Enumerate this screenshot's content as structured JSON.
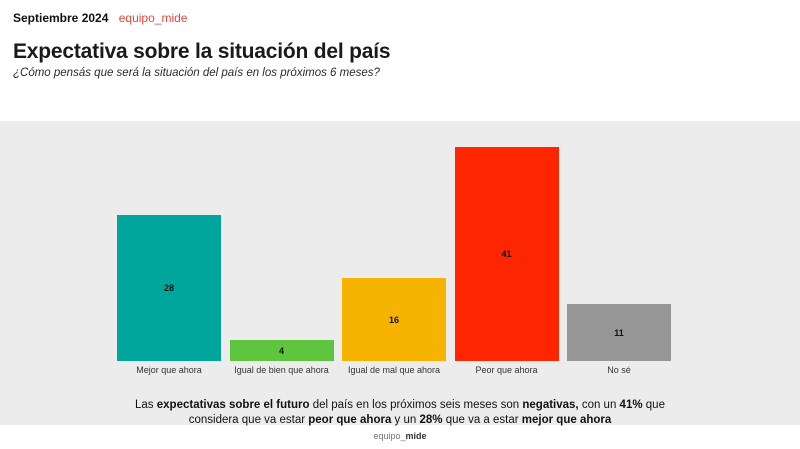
{
  "header": {
    "date": "Septiembre 2024",
    "brand": "equipo_mide",
    "brand_color": "#e8463a"
  },
  "title": "Expectativa sobre la situación del país",
  "subtitle": "¿Cómo pensás que será la situación del país en los próximos 6 meses?",
  "chart_data": {
    "type": "bar",
    "categories": [
      "Mejor que ahora",
      "Igual de bien que ahora",
      "Igual de mal que ahora",
      "Peor que ahora",
      "No sé"
    ],
    "values": [
      28,
      4,
      16,
      41,
      11
    ],
    "bar_colors": [
      "#00a69b",
      "#5dc53e",
      "#f6b401",
      "#fd2600",
      "#969696"
    ],
    "title": "Expectativa sobre la situación del país",
    "subtitle": "¿Cómo pensás que será la situación del país en los próximos 6 meses?",
    "xlabel": "",
    "ylabel": "",
    "ylim": [
      0,
      46
    ],
    "grid": false,
    "value_labels": "inside-center",
    "plot_background": "#ececec",
    "legend": "none"
  },
  "footer": {
    "lines": [
      [
        {
          "t": "Las ",
          "b": false
        },
        {
          "t": "expectativas sobre el futuro",
          "b": true
        },
        {
          "t": " del país en los próximos seis meses son ",
          "b": false
        },
        {
          "t": "negativas,",
          "b": true
        },
        {
          "t": " con un ",
          "b": false
        },
        {
          "t": "41%",
          "b": true
        },
        {
          "t": " que",
          "b": false
        }
      ],
      [
        {
          "t": "considera que va estar ",
          "b": false
        },
        {
          "t": "peor que ahora",
          "b": true
        },
        {
          "t": " y un ",
          "b": false
        },
        {
          "t": "28%",
          "b": true
        },
        {
          "t": " que va a estar ",
          "b": false
        },
        {
          "t": "mejor que ahora",
          "b": true
        }
      ]
    ]
  },
  "bottom_brand": {
    "prefix": "equipo_",
    "suffix": "mide"
  }
}
